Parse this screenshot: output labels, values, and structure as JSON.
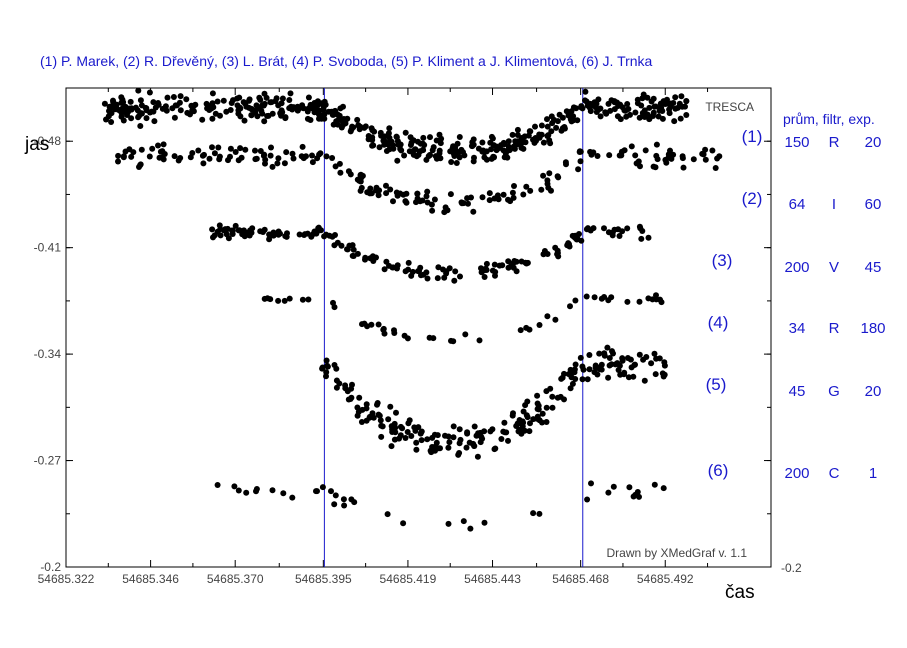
{
  "observers_line": "(1) P. Marek, (2) R. Dřevěný,  (3) L. Brát,  (4) P. Svoboda,  (5) P. Kliment a J. Klimentová, (6) J. Trnka",
  "tresca_label": "TRESCA",
  "credit": "Drawn by XMedGraf v. 1.1",
  "columns_header": "prům, filtr, exp.",
  "chart_data": {
    "type": "scatter",
    "xlabel": "čas",
    "ylabel": "jas",
    "xlim": [
      54685.322,
      54685.522
    ],
    "ylim": [
      -0.2,
      -0.515
    ],
    "x_ticks": [
      "54685.322",
      "54685.346",
      "54685.370",
      "54685.395",
      "54685.419",
      "54685.443",
      "54685.468",
      "54685.492"
    ],
    "y_ticks": [
      "-0.48",
      "-0.41",
      "-0.34",
      "-0.27",
      "-0.2"
    ],
    "right_axis_label": "-0.2",
    "vertical_markers": [
      54685.3953,
      54685.4686
    ],
    "series": [
      {
        "name": "(1)",
        "avg": "150",
        "filter": "R",
        "exp": "20",
        "x_start": 54685.331,
        "x_end": 54685.498,
        "level": -0.502,
        "depth": 0.028,
        "scatter": 0.006,
        "count": 520,
        "seed": 11
      },
      {
        "name": "(2)",
        "avg": "64",
        "filter": "I",
        "exp": "60",
        "x_start": 54685.336,
        "x_end": 54685.508,
        "level": -0.47,
        "depth": 0.03,
        "scatter": 0.005,
        "count": 200,
        "seed": 23
      },
      {
        "name": "(3)",
        "avg": "200",
        "filter": "V",
        "exp": "45",
        "x_start": 54685.362,
        "x_end": 54685.488,
        "level": -0.42,
        "depth": 0.026,
        "scatter": 0.003,
        "count": 170,
        "seed": 37
      },
      {
        "name": "(4)",
        "avg": "34",
        "filter": "R",
        "exp": "180",
        "x_start": 54685.377,
        "x_end": 54685.492,
        "level": -0.376,
        "depth": 0.026,
        "scatter": 0.002,
        "count": 50,
        "seed": 41
      },
      {
        "name": "(5)",
        "avg": "45",
        "filter": "G",
        "exp": "20",
        "x_start": 54685.394,
        "x_end": 54685.492,
        "level": -0.333,
        "depth": 0.05,
        "scatter": 0.008,
        "count": 230,
        "seed": 53
      },
      {
        "name": "(6)",
        "avg": "200",
        "filter": "C",
        "exp": "1",
        "x_start": 54685.365,
        "x_end": 54685.493,
        "level": -0.25,
        "depth": 0.023,
        "scatter": 0.004,
        "count": 38,
        "seed": 67
      }
    ]
  },
  "colors": {
    "axis": "#000000",
    "marker_line": "#1a1acc",
    "point": "#000000",
    "accent_text": "#1a1acc"
  }
}
